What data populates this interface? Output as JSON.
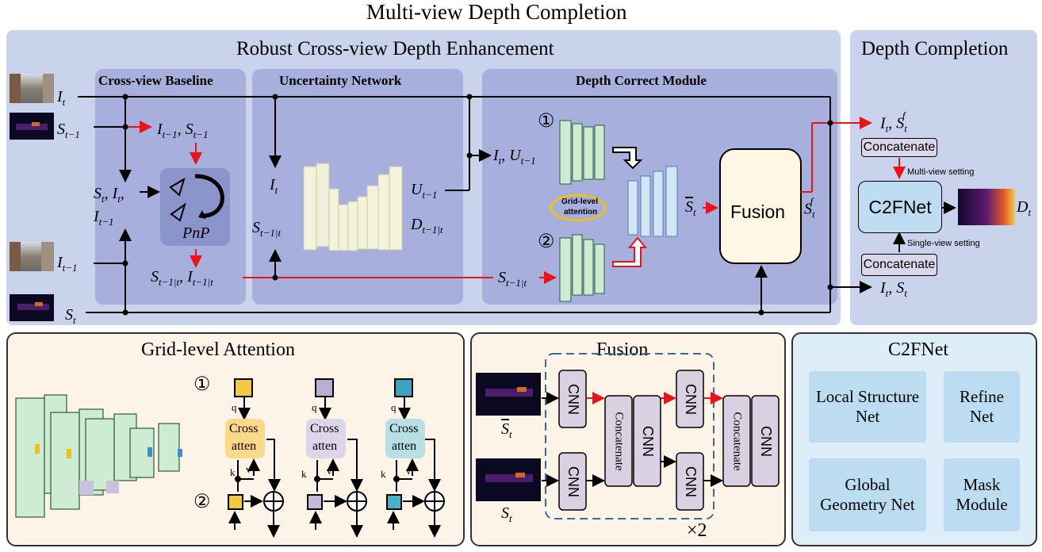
{
  "main_title": "Multi-view Depth Completion",
  "rcde": {
    "title": "Robust Cross-view Depth Enhancement",
    "baseline_title": "Cross-view Baseline",
    "uncertainty_title": "Uncertainty Network",
    "dcm_title": "Depth Correct Module",
    "pnp_label": "PnP",
    "fusion_label": "Fusion",
    "grid_attn_label_1": "Grid-level",
    "grid_attn_label_2": "attention",
    "marker_1": "①",
    "marker_2": "②"
  },
  "depth_completion": {
    "title": "Depth Completion",
    "concat_top": "Concatenate",
    "concat_bottom": "Concatenate",
    "c2fnet": "C2FNet",
    "multi_view": "Multi-view setting",
    "single_view": "Single-view setting"
  },
  "grid_attention_panel": {
    "title": "Grid-level Attention",
    "marker_1": "①",
    "marker_2": "②",
    "q": "q",
    "k": "k",
    "v": "v",
    "cross": "Cross",
    "atten": "atten"
  },
  "fusion_panel": {
    "title": "Fusion",
    "cnn": "CNN",
    "concatenate": "Concatenate",
    "times2": "×2"
  },
  "c2fnet_panel": {
    "title": "C2FNet",
    "local": "Local Structure Net",
    "refine": "Refine Net",
    "global": "Global Geometry Net",
    "mask": "Mask Module"
  },
  "colors": {
    "panel_blue": "#c9d3ec",
    "inner_blue": "#a7b0dc",
    "panel_cream": "#fdf4e7",
    "panel_cyan": "#deeef8",
    "c2f_box": "#bcdcf2",
    "concat_fill": "#dcd6ec",
    "red_arrow": "#e8141c",
    "fusion_fill": "#fdf7e4",
    "green_cell": "#cdecd2",
    "blue_cell": "#d3e6f8",
    "yellow_cell": "#f3f3da"
  }
}
